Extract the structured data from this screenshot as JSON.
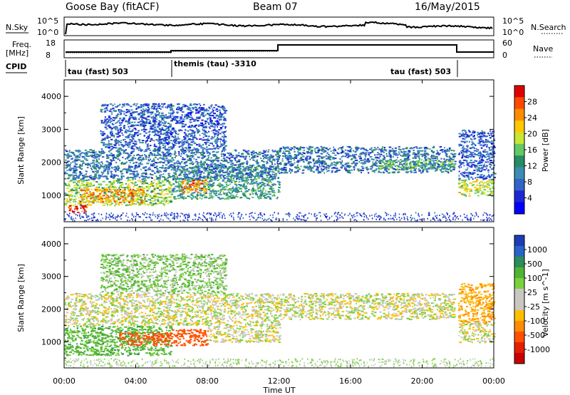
{
  "header": {
    "station": "Goose Bay (fitACF)",
    "beam": "Beam 07",
    "date": "16/May/2015"
  },
  "noise_panel": {
    "left_label": "N.Sky",
    "right_label": "N.Search",
    "left_ticks": [
      "10^5",
      "10^0"
    ],
    "right_ticks": [
      "10^5",
      "10^0"
    ]
  },
  "freq_panel": {
    "left_label_top": "Freq.",
    "left_label_unit": "[MHz]",
    "right_label": "Nave",
    "left_ticks": [
      "18",
      "8"
    ],
    "right_ticks": [
      "60",
      "0"
    ]
  },
  "cpid": {
    "label": "CPID",
    "segments": [
      {
        "text": "tau (fast) 503",
        "start_hour": 0
      },
      {
        "text": "themis (tau) -3310",
        "start_hour": 6
      },
      {
        "text": "tau (fast) 503",
        "start_hour": 22
      }
    ]
  },
  "power_colorbar": {
    "title": "Power [dB]",
    "ticks": [
      "28",
      "24",
      "20",
      "16",
      "12",
      "8",
      "4"
    ],
    "colors": [
      "#e00000",
      "#ff4a00",
      "#ff8c00",
      "#ffc800",
      "#c8e632",
      "#64c864",
      "#288c64",
      "#3c8cb4",
      "#3264c8",
      "#1e28d2",
      "#0000ff"
    ]
  },
  "velocity_colorbar": {
    "title": "Velocity [m s^-1]",
    "ticks": [
      "1000",
      "500",
      "100",
      "25",
      "-25",
      "-100",
      "-500",
      "-1000"
    ],
    "colors": [
      "#1e3cb4",
      "#2864c8",
      "#2d8c5a",
      "#50b432",
      "#78d23c",
      "#c8c8c0",
      "#c8c8c0",
      "#ffbe00",
      "#ff8c00",
      "#ff5000",
      "#e61e00",
      "#c80000"
    ]
  },
  "chart_data": [
    {
      "type": "heatmap",
      "panel": "power",
      "ylabel": "Slant Range [km]",
      "xlabel": "",
      "ylim": [
        200,
        4500
      ],
      "yticks": [
        1000,
        2000,
        3000,
        4000
      ],
      "xlim": [
        0,
        24
      ],
      "xticks": [
        "00:00",
        "04:00",
        "08:00",
        "12:00",
        "16:00",
        "20:00",
        "00:00"
      ],
      "regions": [
        {
          "t0": 0.0,
          "t1": 6.0,
          "r0": 700,
          "r1": 1500,
          "level": 16
        },
        {
          "t0": 0.8,
          "t1": 4.5,
          "r0": 800,
          "r1": 1200,
          "level": 24
        },
        {
          "t0": 0.2,
          "t1": 1.2,
          "r0": 500,
          "r1": 750,
          "level": 28
        },
        {
          "t0": 6.0,
          "t1": 12.0,
          "r0": 900,
          "r1": 1900,
          "level": 12
        },
        {
          "t0": 6.5,
          "t1": 8.0,
          "r0": 1100,
          "r1": 1500,
          "level": 24
        },
        {
          "t0": 0.0,
          "t1": 12.0,
          "r0": 1500,
          "r1": 2400,
          "level": 8
        },
        {
          "t0": 2.0,
          "t1": 9.0,
          "r0": 2400,
          "r1": 3800,
          "level": 6
        },
        {
          "t0": 12.0,
          "t1": 21.8,
          "r0": 1700,
          "r1": 2500,
          "level": 8
        },
        {
          "t0": 17.5,
          "t1": 21.8,
          "r0": 1800,
          "r1": 2100,
          "level": 14
        },
        {
          "t0": 22.0,
          "t1": 24.0,
          "r0": 1000,
          "r1": 1500,
          "level": 18
        },
        {
          "t0": 22.0,
          "t1": 24.0,
          "r0": 1500,
          "r1": 3000,
          "level": 6
        }
      ]
    },
    {
      "type": "heatmap",
      "panel": "velocity",
      "ylabel": "Slant Range [km]",
      "xlabel": "Time UT",
      "ylim": [
        200,
        4500
      ],
      "yticks": [
        1000,
        2000,
        3000,
        4000
      ],
      "xlim": [
        0,
        24
      ],
      "xticks": [
        "00:00",
        "04:00",
        "08:00",
        "12:00",
        "16:00",
        "20:00",
        "00:00"
      ],
      "regions": [
        {
          "t0": 0.0,
          "t1": 6.0,
          "r0": 600,
          "r1": 1500,
          "velocity": 100
        },
        {
          "t0": 3.0,
          "t1": 6.0,
          "r0": 900,
          "r1": 1300,
          "velocity": -500
        },
        {
          "t0": 6.0,
          "t1": 8.0,
          "r0": 900,
          "r1": 1400,
          "velocity": -500
        },
        {
          "t0": 8.0,
          "t1": 12.0,
          "r0": 1000,
          "r1": 1500,
          "velocity": 0
        },
        {
          "t0": 0.0,
          "t1": 12.0,
          "r0": 1500,
          "r1": 2500,
          "velocity": 0
        },
        {
          "t0": 2.0,
          "t1": 9.0,
          "r0": 2500,
          "r1": 3700,
          "velocity": 50
        },
        {
          "t0": 12.0,
          "t1": 21.8,
          "r0": 1700,
          "r1": 2500,
          "velocity": 0
        },
        {
          "t0": 22.0,
          "t1": 24.0,
          "r0": 1000,
          "r1": 1600,
          "velocity": 0
        },
        {
          "t0": 22.0,
          "t1": 24.0,
          "r0": 1600,
          "r1": 2800,
          "velocity": -100
        }
      ]
    }
  ]
}
